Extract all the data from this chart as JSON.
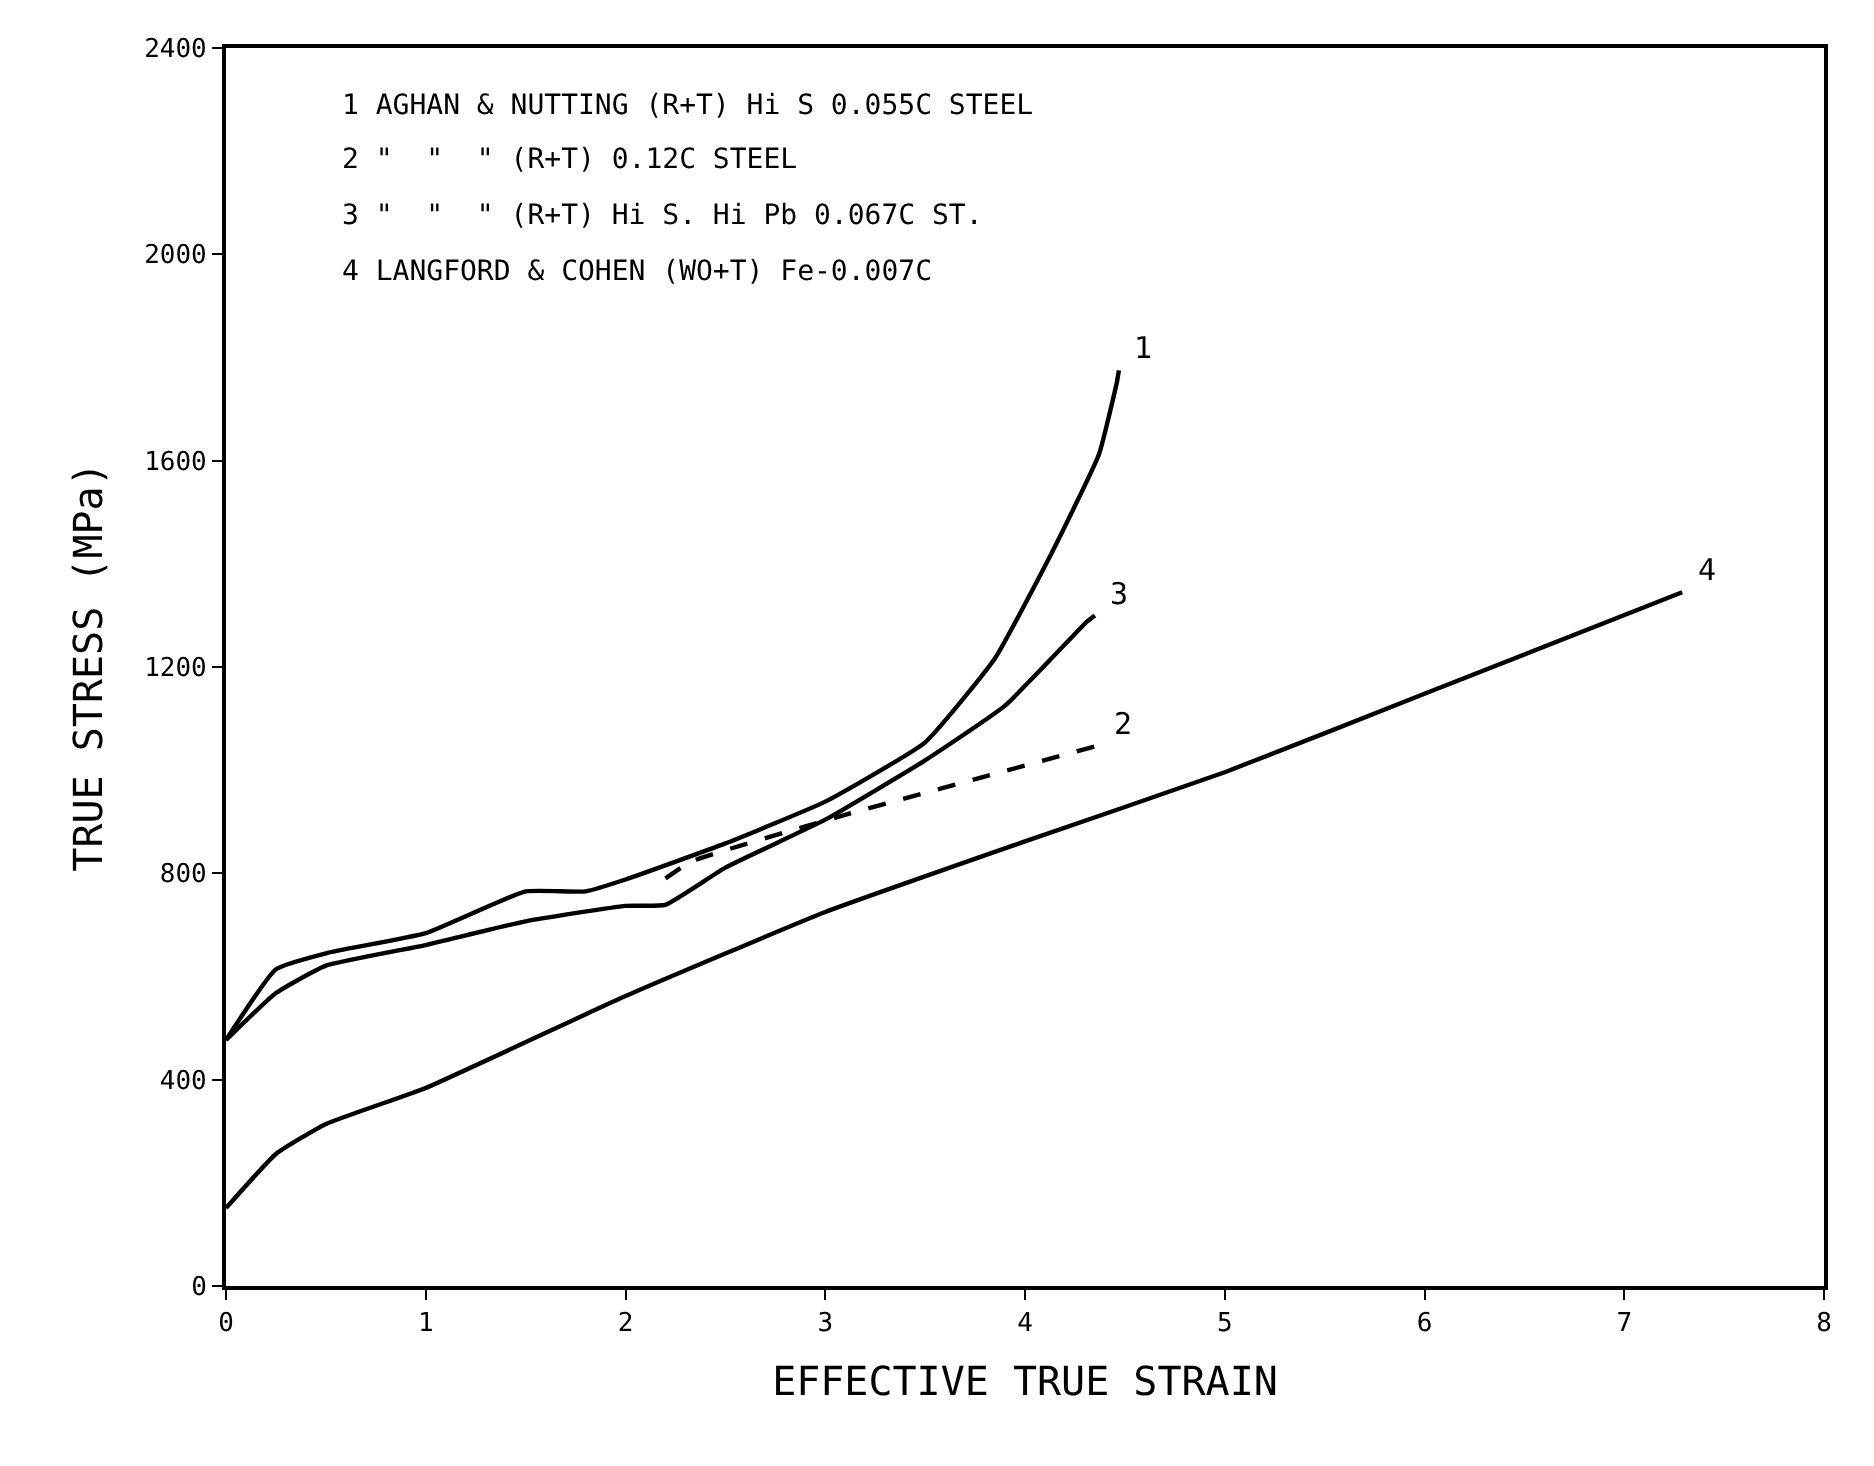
{
  "chart_data": {
    "type": "line",
    "xlabel": "EFFECTIVE TRUE STRAIN",
    "ylabel": "TRUE STRESS (MPa)",
    "xlim": [
      0,
      8
    ],
    "xticks": [
      0,
      1,
      2,
      3,
      4,
      5,
      6,
      7,
      8
    ],
    "ylim": [
      0,
      2400
    ],
    "yticks": [
      0,
      400,
      800,
      1200,
      1600,
      2000,
      2400
    ],
    "series": [
      {
        "color": "#000000",
        "line_style": "solid",
        "x": [
          0,
          0.25,
          0.5,
          1,
          1.5,
          1.8,
          2,
          2.5,
          3,
          3.5,
          3.85,
          4.14,
          4.37,
          4.46,
          4.47
        ],
        "values": [
          477,
          614,
          645,
          684,
          765,
          765,
          788,
          858,
          939,
          1054,
          1217,
          1426,
          1612,
          1752,
          1775
        ]
      },
      {
        "color": "#000000",
        "line_style": "dashed",
        "x": [
          2.2,
          2.33,
          3.06,
          4.37
        ],
        "values": [
          790,
          823,
          909,
          1048
        ]
      },
      {
        "color": "#000000",
        "line_style": "solid",
        "x": [
          0,
          0.25,
          0.5,
          1,
          1.5,
          2,
          2.2,
          2.5,
          3,
          3.5,
          3.9,
          4.31,
          4.35
        ],
        "values": [
          477,
          568,
          621,
          661,
          707,
          737,
          739,
          811,
          904,
          1019,
          1125,
          1288,
          1300
        ]
      },
      {
        "color": "#000000",
        "line_style": "solid",
        "x": [
          0,
          0.25,
          0.5,
          1,
          2,
          3,
          4,
          5,
          6,
          7.29
        ],
        "values": [
          151,
          256,
          314,
          384,
          562,
          725,
          862,
          996,
          1148,
          1345
        ]
      }
    ],
    "annotations": [
      "1 AGHAN & NUTTING (R+T) Hi S 0.055C STEEL",
      "2 \"  \"  \" (R+T) 0.12C STEEL",
      "3 \"  \"  \" (R+T) Hi S. Hi Pb 0.067C ST.",
      "4 LANGFORD & COHEN (WO+T) Fe-0.007C",
      {
        "text": "1",
        "x": 4.47,
        "y": 1775
      },
      {
        "text": "2",
        "x": 4.37,
        "y": 1048
      },
      {
        "text": "3",
        "x": 4.35,
        "y": 1300
      },
      {
        "text": "4",
        "x": 7.29,
        "y": 1345
      }
    ]
  }
}
